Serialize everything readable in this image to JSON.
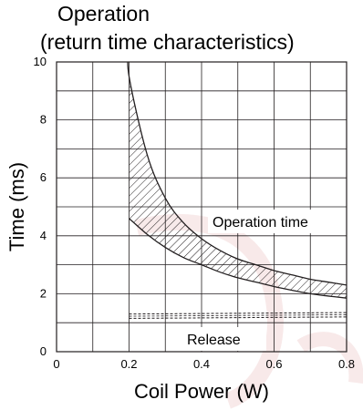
{
  "chart_data": {
    "type": "line",
    "title_lines": [
      "Operation",
      "(return time characteristics)"
    ],
    "xlabel": "Coil Power (W)",
    "ylabel": "Time (ms)",
    "xlim": [
      0,
      0.8
    ],
    "ylim": [
      0,
      10
    ],
    "x_ticks": [
      "0",
      "0.2",
      "0.4",
      "0.6",
      "0.8"
    ],
    "y_ticks": [
      "0",
      "2",
      "4",
      "6",
      "8",
      "10"
    ],
    "grid": true,
    "series": [
      {
        "name": "Operation time",
        "style": "hatched band",
        "x": [
          0.2,
          0.25,
          0.3,
          0.35,
          0.4,
          0.45,
          0.5,
          0.55,
          0.6,
          0.65,
          0.7,
          0.75,
          0.8
        ],
        "upper": [
          9.5,
          6.8,
          5.3,
          4.45,
          3.9,
          3.5,
          3.2,
          3.0,
          2.8,
          2.65,
          2.5,
          2.4,
          2.3
        ],
        "lower": [
          4.6,
          4.05,
          3.6,
          3.25,
          3.0,
          2.75,
          2.55,
          2.4,
          2.25,
          2.12,
          2.0,
          1.92,
          1.85
        ]
      },
      {
        "name": "Release",
        "style": "dashed band",
        "x": [
          0.2,
          0.8
        ],
        "upper": [
          1.3,
          1.35
        ],
        "lower": [
          1.15,
          1.2
        ]
      }
    ]
  },
  "colors": {
    "ink": "#231f20",
    "watermark": "#f3d8d8"
  }
}
